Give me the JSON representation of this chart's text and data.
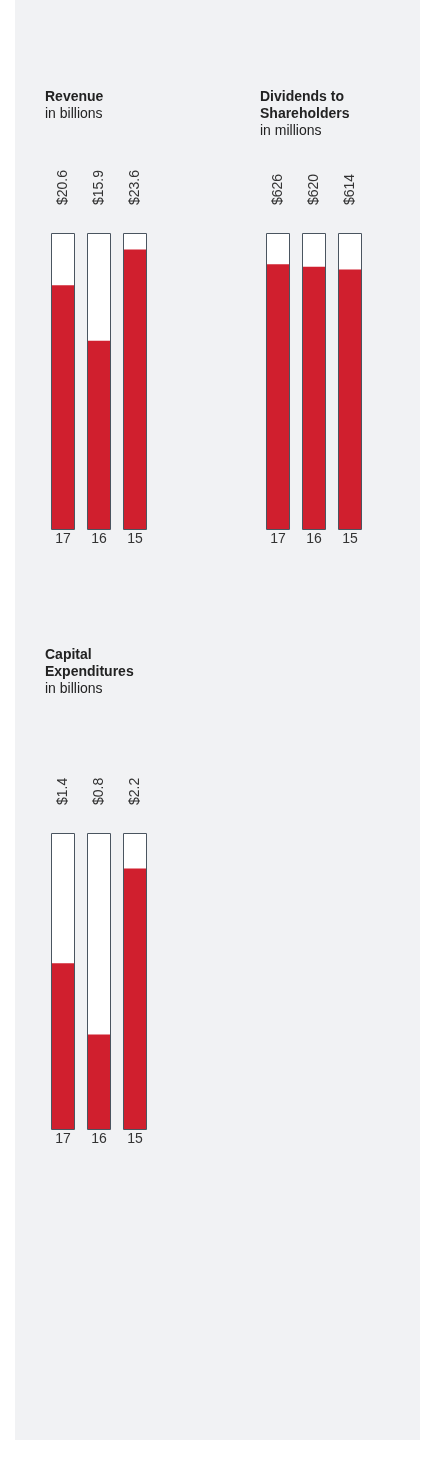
{
  "chart_data": [
    {
      "type": "bar",
      "title": "Revenue",
      "subtitle": "in billions",
      "categories": [
        "17",
        "16",
        "15"
      ],
      "values": [
        20.6,
        15.9,
        23.6
      ],
      "value_labels": [
        "$20.6",
        "$15.9",
        "$23.6"
      ],
      "color": "#d01f2e",
      "ylim": [
        0,
        25
      ],
      "tick_labels": "x",
      "grid": false,
      "legend": false
    },
    {
      "type": "bar",
      "title": "Dividends to Shareholders",
      "subtitle": "in millions",
      "categories": [
        "17",
        "16",
        "15"
      ],
      "values": [
        626,
        620,
        614
      ],
      "value_labels": [
        "$626",
        "$620",
        "$614"
      ],
      "color": "#d01f2e",
      "ylim": [
        0,
        700
      ],
      "tick_labels": "x",
      "grid": false,
      "legend": false
    },
    {
      "type": "bar",
      "title": "Capital Expenditures",
      "subtitle": "in billions",
      "categories": [
        "17",
        "16",
        "15"
      ],
      "values": [
        1.4,
        0.8,
        2.2
      ],
      "value_labels": [
        "$1.4",
        "$0.8",
        "$2.2"
      ],
      "color": "#d01f2e",
      "ylim": [
        0,
        2.5
      ],
      "tick_labels": "x",
      "grid": false,
      "legend": false
    }
  ]
}
